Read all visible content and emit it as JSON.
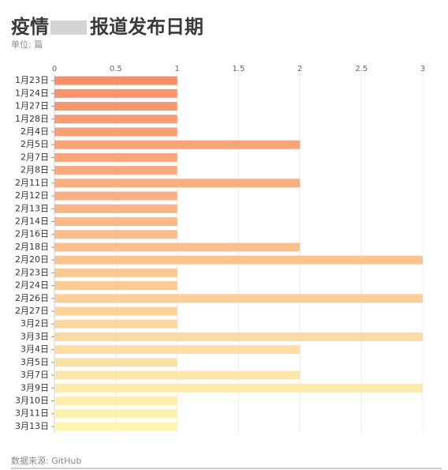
{
  "chart_data": {
    "type": "bar",
    "orientation": "horizontal",
    "title_start": "疫情",
    "title_end": "报道发布日期",
    "subtitle": "单位: 篇",
    "source": "数据来源: GitHub",
    "categories": [
      "1月23日",
      "1月24日",
      "1月27日",
      "1月28日",
      "2月4日",
      "2月5日",
      "2月7日",
      "2月8日",
      "2月11日",
      "2月12日",
      "2月13日",
      "2月14日",
      "2月16日",
      "2月18日",
      "2月20日",
      "2月23日",
      "2月24日",
      "2月26日",
      "2月27日",
      "3月2日",
      "3月3日",
      "3月4日",
      "3月5日",
      "3月7日",
      "3月9日",
      "3月10日",
      "3月11日",
      "3月13日"
    ],
    "values": [
      1,
      1,
      1,
      1,
      1,
      2,
      1,
      1,
      2,
      1,
      1,
      1,
      1,
      2,
      3,
      1,
      1,
      3,
      1,
      1,
      3,
      2,
      1,
      2,
      3,
      1,
      1,
      1
    ],
    "color_start": "#f7906a",
    "color_end": "#fdf4b4",
    "xlim": [
      0,
      3
    ],
    "xticks": [
      0,
      0.5,
      1,
      1.5,
      2,
      2.5,
      3
    ],
    "grid": true
  }
}
